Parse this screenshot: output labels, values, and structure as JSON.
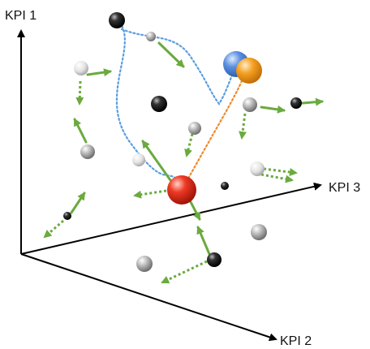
{
  "axes": {
    "vertical": "KPI 1",
    "right": "KPI 3",
    "diagonal": "KPI 2"
  },
  "colors": {
    "axis": "#000000",
    "arrow": "#6aaa3e",
    "blue_path": "#5a9ee0",
    "orange_path": "#ee8a2e",
    "red_point": "#e0301e",
    "blue_point": "#5b8fe0",
    "orange_point": "#f5a020",
    "gray_point": "#a8a8a8",
    "black_point": "#1e1e1e"
  }
}
